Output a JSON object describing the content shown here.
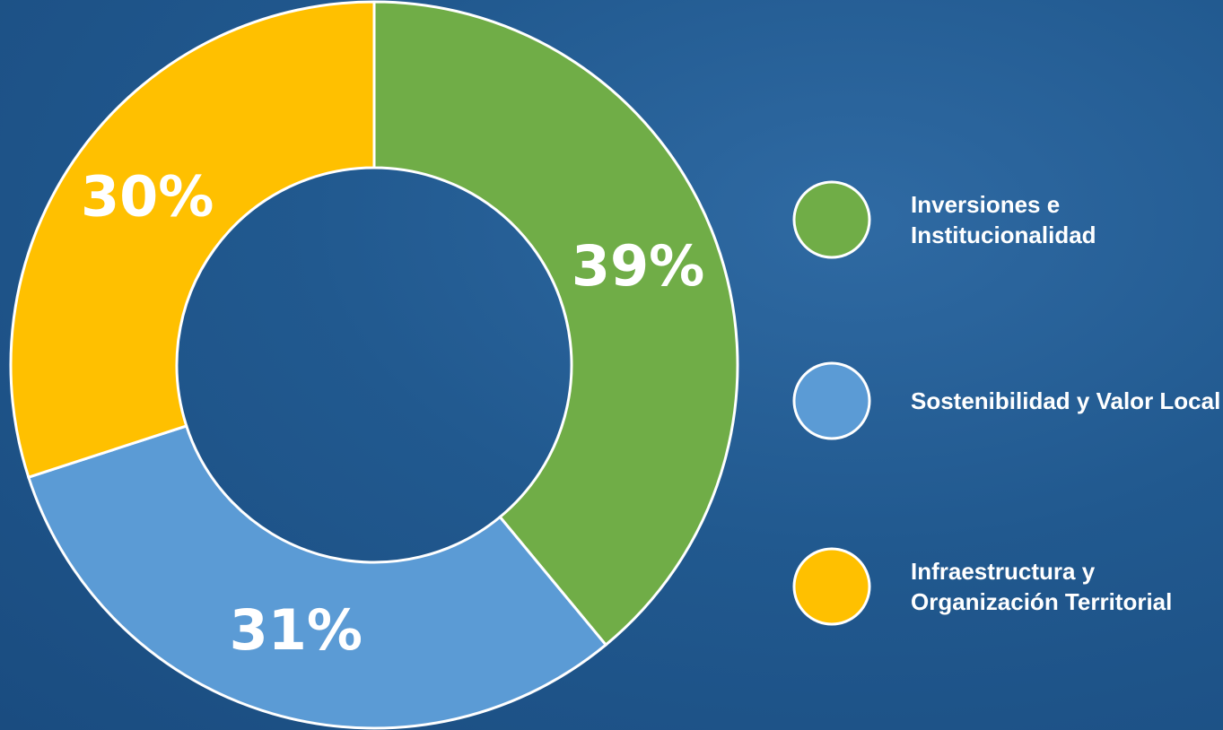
{
  "chart_data": {
    "type": "donut",
    "categories": [
      "Inversiones e Institucionalidad",
      "Sostenibilidad y Valor Local",
      "Infraestructura y Organización Territorial"
    ],
    "values": [
      39,
      31,
      30
    ],
    "value_labels": [
      "39%",
      "31%",
      "30%"
    ],
    "colors": [
      "#70ad47",
      "#5b9bd5",
      "#ffc000"
    ],
    "legend": "right"
  }
}
